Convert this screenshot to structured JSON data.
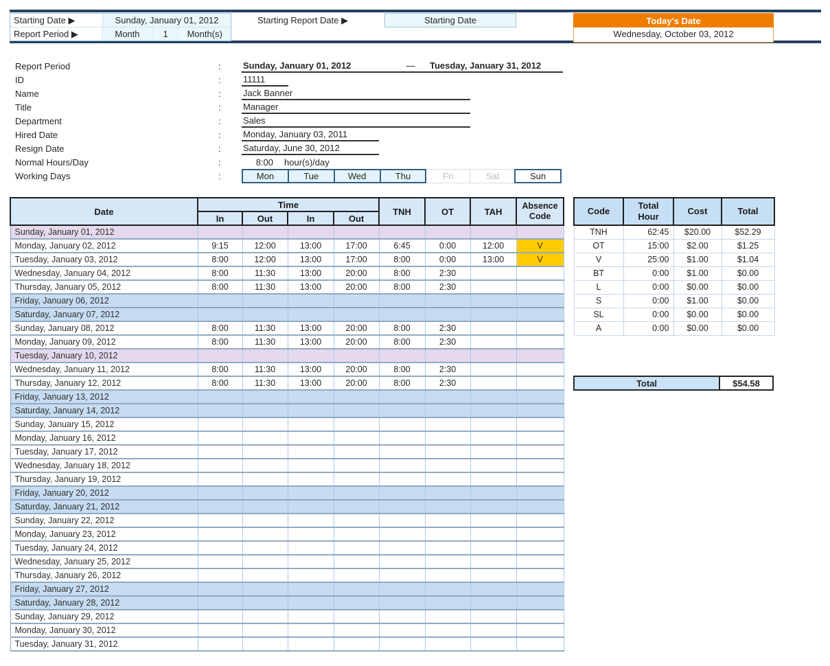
{
  "colors": {
    "accent_orange": "#F07D00",
    "navy_rule": "#24425E",
    "main_header_blue": "#D6E7F8",
    "summary_header_blue": "#C7DFF5",
    "weekend_row_blue": "#C6DCF1",
    "holiday_row_purple": "#E5D9ED",
    "absence_highlight_yellow": "#FFCC00",
    "input_cyan": "#EAF7FB"
  },
  "top": {
    "starting_date_label": "Starting Date ▶",
    "starting_date_value": "Sunday, January 01, 2012",
    "report_period_label": "Report Period ▶",
    "report_period_unit_label": "Month",
    "report_period_value": "1",
    "report_period_suffix": "Month(s)",
    "starting_report_date_label": "Starting Report Date ▶",
    "starting_report_date_value": "Starting Date",
    "todays_date_label": "Today's Date",
    "todays_date_value": "Wednesday, October 03, 2012"
  },
  "info": {
    "colon": ":",
    "report_period": {
      "label": "Report Period",
      "from": "Sunday, January 01, 2012",
      "dash": "—",
      "to": "Tuesday, January 31, 2012"
    },
    "id": {
      "label": "ID",
      "value": "11111"
    },
    "name": {
      "label": "Name",
      "value": "Jack Banner"
    },
    "title": {
      "label": "Title",
      "value": "Manager"
    },
    "department": {
      "label": "Department",
      "value": "Sales"
    },
    "hired_date": {
      "label": "Hired Date",
      "value": "Monday, January 03, 2011"
    },
    "resign_date": {
      "label": "Resign Date",
      "value": "Saturday, June 30, 2012"
    },
    "normal_hours": {
      "label": "Normal Hours/Day",
      "value": "8:00",
      "suffix": "hour(s)/day"
    },
    "working_days": {
      "label": "Working Days",
      "days": [
        {
          "label": "Mon",
          "state": "active"
        },
        {
          "label": "Tue",
          "state": "active"
        },
        {
          "label": "Wed",
          "state": "active"
        },
        {
          "label": "Thu",
          "state": "active"
        },
        {
          "label": "Fri",
          "state": "off"
        },
        {
          "label": "Sat",
          "state": "off"
        },
        {
          "label": "Sun",
          "state": "sun"
        }
      ]
    }
  },
  "timesheet": {
    "headers": {
      "date": "Date",
      "time": "Time",
      "in1": "In",
      "out1": "Out",
      "in2": "In",
      "out2": "Out",
      "tnh": "TNH",
      "ot": "OT",
      "tah": "TAH",
      "absence": "Absence Code"
    },
    "rows": [
      {
        "date": "Sunday, January 01, 2012",
        "type": "holiday",
        "cells": [
          "",
          "",
          "",
          "",
          "",
          "",
          ""
        ],
        "absence": ""
      },
      {
        "date": "Monday, January 02, 2012",
        "type": "normal",
        "cells": [
          "9:15",
          "12:00",
          "13:00",
          "17:00",
          "6:45",
          "0:00",
          "12:00"
        ],
        "absence": "V"
      },
      {
        "date": "Tuesday, January 03, 2012",
        "type": "normal",
        "cells": [
          "8:00",
          "12:00",
          "13:00",
          "17:00",
          "8:00",
          "0:00",
          "13:00"
        ],
        "absence": "V"
      },
      {
        "date": "Wednesday, January 04, 2012",
        "type": "normal",
        "cells": [
          "8:00",
          "11:30",
          "13:00",
          "20:00",
          "8:00",
          "2:30",
          ""
        ],
        "absence": ""
      },
      {
        "date": "Thursday, January 05, 2012",
        "type": "normal",
        "cells": [
          "8:00",
          "11:30",
          "13:00",
          "20:00",
          "8:00",
          "2:30",
          ""
        ],
        "absence": ""
      },
      {
        "date": "Friday, January 06, 2012",
        "type": "weekend",
        "cells": [
          "",
          "",
          "",
          "",
          "",
          "",
          ""
        ],
        "absence": ""
      },
      {
        "date": "Saturday, January 07, 2012",
        "type": "weekend",
        "cells": [
          "",
          "",
          "",
          "",
          "",
          "",
          ""
        ],
        "absence": ""
      },
      {
        "date": "Sunday, January 08, 2012",
        "type": "normal",
        "cells": [
          "8:00",
          "11:30",
          "13:00",
          "20:00",
          "8:00",
          "2:30",
          ""
        ],
        "absence": ""
      },
      {
        "date": "Monday, January 09, 2012",
        "type": "normal",
        "cells": [
          "8:00",
          "11:30",
          "13:00",
          "20:00",
          "8:00",
          "2:30",
          ""
        ],
        "absence": ""
      },
      {
        "date": "Tuesday, January 10, 2012",
        "type": "holiday",
        "cells": [
          "",
          "",
          "",
          "",
          "",
          "",
          ""
        ],
        "absence": ""
      },
      {
        "date": "Wednesday, January 11, 2012",
        "type": "normal",
        "cells": [
          "8:00",
          "11:30",
          "13:00",
          "20:00",
          "8:00",
          "2:30",
          ""
        ],
        "absence": ""
      },
      {
        "date": "Thursday, January 12, 2012",
        "type": "normal",
        "cells": [
          "8:00",
          "11:30",
          "13:00",
          "20:00",
          "8:00",
          "2:30",
          ""
        ],
        "absence": ""
      },
      {
        "date": "Friday, January 13, 2012",
        "type": "weekend",
        "cells": [
          "",
          "",
          "",
          "",
          "",
          "",
          ""
        ],
        "absence": ""
      },
      {
        "date": "Saturday, January 14, 2012",
        "type": "weekend",
        "cells": [
          "",
          "",
          "",
          "",
          "",
          "",
          ""
        ],
        "absence": ""
      },
      {
        "date": "Sunday, January 15, 2012",
        "type": "normal",
        "cells": [
          "",
          "",
          "",
          "",
          "",
          "",
          ""
        ],
        "absence": ""
      },
      {
        "date": "Monday, January 16, 2012",
        "type": "normal",
        "cells": [
          "",
          "",
          "",
          "",
          "",
          "",
          ""
        ],
        "absence": ""
      },
      {
        "date": "Tuesday, January 17, 2012",
        "type": "normal",
        "cells": [
          "",
          "",
          "",
          "",
          "",
          "",
          ""
        ],
        "absence": ""
      },
      {
        "date": "Wednesday, January 18, 2012",
        "type": "normal",
        "cells": [
          "",
          "",
          "",
          "",
          "",
          "",
          ""
        ],
        "absence": ""
      },
      {
        "date": "Thursday, January 19, 2012",
        "type": "normal",
        "cells": [
          "",
          "",
          "",
          "",
          "",
          "",
          ""
        ],
        "absence": ""
      },
      {
        "date": "Friday, January 20, 2012",
        "type": "weekend",
        "cells": [
          "",
          "",
          "",
          "",
          "",
          "",
          ""
        ],
        "absence": ""
      },
      {
        "date": "Saturday, January 21, 2012",
        "type": "weekend",
        "cells": [
          "",
          "",
          "",
          "",
          "",
          "",
          ""
        ],
        "absence": ""
      },
      {
        "date": "Sunday, January 22, 2012",
        "type": "normal",
        "cells": [
          "",
          "",
          "",
          "",
          "",
          "",
          ""
        ],
        "absence": ""
      },
      {
        "date": "Monday, January 23, 2012",
        "type": "normal",
        "cells": [
          "",
          "",
          "",
          "",
          "",
          "",
          ""
        ],
        "absence": ""
      },
      {
        "date": "Tuesday, January 24, 2012",
        "type": "normal",
        "cells": [
          "",
          "",
          "",
          "",
          "",
          "",
          ""
        ],
        "absence": ""
      },
      {
        "date": "Wednesday, January 25, 2012",
        "type": "normal",
        "cells": [
          "",
          "",
          "",
          "",
          "",
          "",
          ""
        ],
        "absence": ""
      },
      {
        "date": "Thursday, January 26, 2012",
        "type": "normal",
        "cells": [
          "",
          "",
          "",
          "",
          "",
          "",
          ""
        ],
        "absence": ""
      },
      {
        "date": "Friday, January 27, 2012",
        "type": "weekend",
        "cells": [
          "",
          "",
          "",
          "",
          "",
          "",
          ""
        ],
        "absence": ""
      },
      {
        "date": "Saturday, January 28, 2012",
        "type": "weekend",
        "cells": [
          "",
          "",
          "",
          "",
          "",
          "",
          ""
        ],
        "absence": ""
      },
      {
        "date": "Sunday, January 29, 2012",
        "type": "normal",
        "cells": [
          "",
          "",
          "",
          "",
          "",
          "",
          ""
        ],
        "absence": ""
      },
      {
        "date": "Monday, January 30, 2012",
        "type": "normal",
        "cells": [
          "",
          "",
          "",
          "",
          "",
          "",
          ""
        ],
        "absence": ""
      },
      {
        "date": "Tuesday, January 31, 2012",
        "type": "normal",
        "cells": [
          "",
          "",
          "",
          "",
          "",
          "",
          ""
        ],
        "absence": ""
      }
    ]
  },
  "summary": {
    "headers": {
      "code": "Code",
      "total_hour": "Total Hour",
      "cost": "Cost",
      "total": "Total"
    },
    "rows": [
      {
        "code": "TNH",
        "hours": "62:45",
        "cost": "$20.00",
        "total": "$52.29"
      },
      {
        "code": "OT",
        "hours": "15:00",
        "cost": "$2.00",
        "total": "$1.25"
      },
      {
        "code": "V",
        "hours": "25:00",
        "cost": "$1.00",
        "total": "$1.04"
      },
      {
        "code": "BT",
        "hours": "0:00",
        "cost": "$1.00",
        "total": "$0.00"
      },
      {
        "code": "L",
        "hours": "0:00",
        "cost": "$0.00",
        "total": "$0.00"
      },
      {
        "code": "S",
        "hours": "0:00",
        "cost": "$1.00",
        "total": "$0.00"
      },
      {
        "code": "SL",
        "hours": "0:00",
        "cost": "$0.00",
        "total": "$0.00"
      },
      {
        "code": "A",
        "hours": "0:00",
        "cost": "$0.00",
        "total": "$0.00"
      }
    ],
    "total": {
      "label": "Total",
      "value": "$54.58"
    }
  }
}
